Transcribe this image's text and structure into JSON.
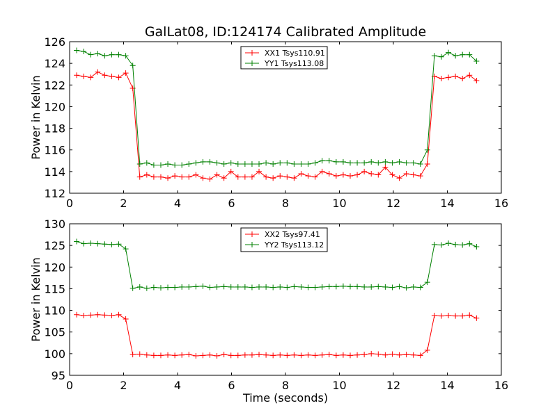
{
  "chart_data": [
    {
      "type": "line",
      "title": "GalLat08, ID:124174 Calibrated Amplitude",
      "xlabel": "",
      "ylabel": "Power in Kelvin",
      "xlim": [
        0,
        16
      ],
      "ylim": [
        112,
        126
      ],
      "xticks": [
        0,
        2,
        4,
        6,
        8,
        10,
        12,
        14,
        16
      ],
      "yticks": [
        112,
        114,
        116,
        118,
        120,
        122,
        124,
        126
      ],
      "grid": false,
      "legend_position": "top-center",
      "x": [
        0.26,
        0.52,
        0.78,
        1.04,
        1.3,
        1.56,
        1.82,
        2.08,
        2.34,
        2.6,
        2.86,
        3.12,
        3.38,
        3.64,
        3.9,
        4.16,
        4.42,
        4.68,
        4.94,
        5.2,
        5.46,
        5.72,
        5.98,
        6.24,
        6.5,
        6.76,
        7.02,
        7.28,
        7.54,
        7.8,
        8.06,
        8.32,
        8.58,
        8.84,
        9.1,
        9.36,
        9.62,
        9.88,
        10.14,
        10.4,
        10.66,
        10.92,
        11.18,
        11.44,
        11.7,
        11.96,
        12.22,
        12.48,
        12.74,
        13.0,
        13.26,
        13.52,
        13.78,
        14.04,
        14.3,
        14.56,
        14.82,
        15.08
      ],
      "series": [
        {
          "name": "XX1 Tsys110.91",
          "color": "#ff0000",
          "values": [
            122.9,
            122.8,
            122.7,
            123.2,
            122.9,
            122.8,
            122.7,
            123.1,
            121.7,
            113.5,
            113.7,
            113.5,
            113.5,
            113.4,
            113.6,
            113.5,
            113.5,
            113.7,
            113.4,
            113.3,
            113.7,
            113.4,
            114.0,
            113.5,
            113.5,
            113.5,
            114.0,
            113.5,
            113.4,
            113.6,
            113.5,
            113.4,
            113.8,
            113.6,
            113.5,
            114.0,
            113.8,
            113.6,
            113.7,
            113.6,
            113.7,
            114.0,
            113.8,
            113.7,
            114.4,
            113.7,
            113.4,
            113.8,
            113.7,
            113.6,
            114.7,
            122.8,
            122.6,
            122.7,
            122.8,
            122.6,
            122.9,
            122.4
          ]
        },
        {
          "name": "YY1 Tsys113.08",
          "color": "#008000",
          "values": [
            125.2,
            125.1,
            124.8,
            124.9,
            124.7,
            124.8,
            124.8,
            124.7,
            123.8,
            114.7,
            114.8,
            114.6,
            114.6,
            114.7,
            114.6,
            114.6,
            114.7,
            114.8,
            114.9,
            114.9,
            114.8,
            114.7,
            114.8,
            114.7,
            114.7,
            114.7,
            114.7,
            114.8,
            114.7,
            114.8,
            114.8,
            114.7,
            114.7,
            114.7,
            114.8,
            115.0,
            115.0,
            114.9,
            114.9,
            114.8,
            114.8,
            114.8,
            114.9,
            114.8,
            114.9,
            114.8,
            114.9,
            114.8,
            114.8,
            114.7,
            116.0,
            124.7,
            124.6,
            125.0,
            124.7,
            124.8,
            124.8,
            124.2
          ]
        }
      ]
    },
    {
      "type": "line",
      "title": "",
      "xlabel": "Time (seconds)",
      "ylabel": "Power in Kelvin",
      "xlim": [
        0,
        16
      ],
      "ylim": [
        95,
        130
      ],
      "xticks": [
        0,
        2,
        4,
        6,
        8,
        10,
        12,
        14,
        16
      ],
      "yticks": [
        95,
        100,
        105,
        110,
        115,
        120,
        125,
        130
      ],
      "grid": false,
      "legend_position": "top-center",
      "x": [
        0.26,
        0.52,
        0.78,
        1.04,
        1.3,
        1.56,
        1.82,
        2.08,
        2.34,
        2.6,
        2.86,
        3.12,
        3.38,
        3.64,
        3.9,
        4.16,
        4.42,
        4.68,
        4.94,
        5.2,
        5.46,
        5.72,
        5.98,
        6.24,
        6.5,
        6.76,
        7.02,
        7.28,
        7.54,
        7.8,
        8.06,
        8.32,
        8.58,
        8.84,
        9.1,
        9.36,
        9.62,
        9.88,
        10.14,
        10.4,
        10.66,
        10.92,
        11.18,
        11.44,
        11.7,
        11.96,
        12.22,
        12.48,
        12.74,
        13.0,
        13.26,
        13.52,
        13.78,
        14.04,
        14.3,
        14.56,
        14.82,
        15.08
      ],
      "series": [
        {
          "name": "XX2 Tsys97.41",
          "color": "#ff0000",
          "values": [
            109.0,
            108.8,
            108.9,
            109.0,
            108.9,
            108.8,
            109.0,
            108.0,
            99.8,
            99.9,
            99.7,
            99.6,
            99.6,
            99.7,
            99.6,
            99.7,
            99.8,
            99.5,
            99.6,
            99.7,
            99.5,
            99.8,
            99.6,
            99.6,
            99.7,
            99.7,
            99.8,
            99.7,
            99.6,
            99.7,
            99.6,
            99.7,
            99.6,
            99.7,
            99.6,
            99.7,
            99.8,
            99.6,
            99.7,
            99.6,
            99.7,
            99.8,
            100.0,
            99.9,
            99.7,
            99.9,
            99.7,
            99.8,
            99.7,
            99.6,
            100.8,
            108.8,
            108.7,
            108.8,
            108.7,
            108.7,
            108.9,
            108.2
          ]
        },
        {
          "name": "YY2 Tsys113.12",
          "color": "#008000",
          "values": [
            125.9,
            125.4,
            125.5,
            125.4,
            125.3,
            125.2,
            125.3,
            124.2,
            115.1,
            115.4,
            115.1,
            115.3,
            115.2,
            115.3,
            115.3,
            115.4,
            115.4,
            115.5,
            115.6,
            115.3,
            115.4,
            115.5,
            115.4,
            115.4,
            115.4,
            115.3,
            115.4,
            115.4,
            115.3,
            115.4,
            115.3,
            115.5,
            115.4,
            115.3,
            115.3,
            115.4,
            115.5,
            115.5,
            115.6,
            115.5,
            115.5,
            115.4,
            115.4,
            115.5,
            115.4,
            115.3,
            115.5,
            115.2,
            115.4,
            115.3,
            116.5,
            125.2,
            125.1,
            125.5,
            125.2,
            125.1,
            125.4,
            124.7
          ]
        }
      ]
    }
  ]
}
